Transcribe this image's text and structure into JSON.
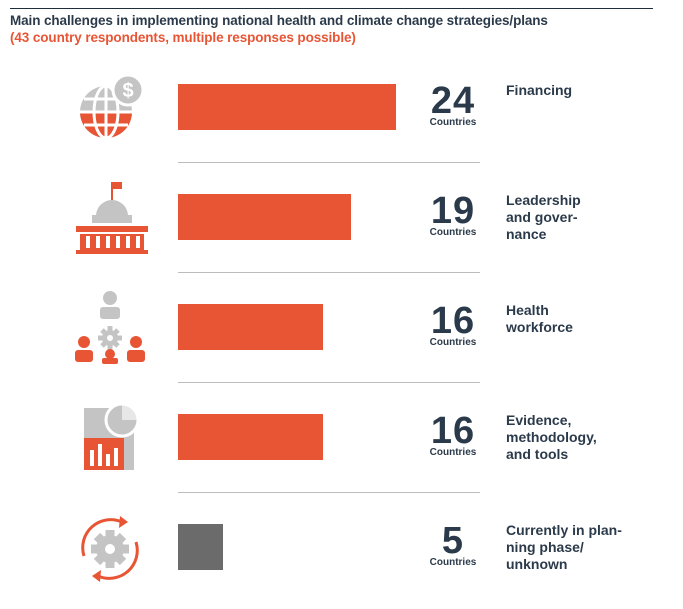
{
  "chart_data": {
    "type": "bar",
    "orientation": "horizontal",
    "title": "Main challenges in implementing national health and climate change strategies/plans",
    "subtitle": "(43 country respondents, multiple responses possible)",
    "unit_label": "Countries",
    "xlim": [
      0,
      24
    ],
    "categories": [
      "Financing",
      "Leadership\nand gover-\nnance",
      "Health\nworkforce",
      "Evidence,\nmethodology,\nand tools",
      "Currently in plan-\nning phase/\nunknown"
    ],
    "values": [
      24,
      19,
      16,
      16,
      5
    ],
    "icons": [
      "globe-dollar-icon",
      "government-building-icon",
      "workforce-people-gear-icon",
      "charts-evidence-icon",
      "gear-cycle-icon"
    ],
    "bar_colors": [
      "#e85535",
      "#e85535",
      "#e85535",
      "#e85535",
      "#6b6b6b"
    ]
  },
  "colors": {
    "accent": "#e85535",
    "grey_icon": "#c4c4c4",
    "text": "#2b3a4a",
    "neutral_bar": "#6b6b6b"
  }
}
